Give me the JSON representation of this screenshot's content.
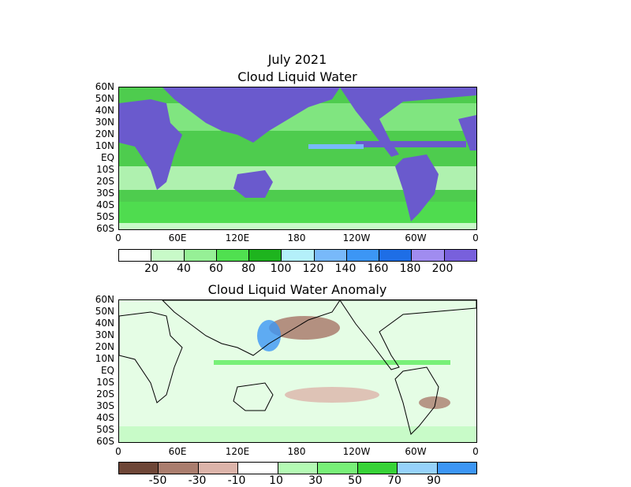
{
  "figure": {
    "title": "July 2021",
    "top_title": "Cloud Liquid Water",
    "bottom_title": "Cloud Liquid Water Anomaly"
  },
  "axes": {
    "y_ticks": [
      "60N",
      "50N",
      "40N",
      "30N",
      "20N",
      "10N",
      "EQ",
      "10S",
      "20S",
      "30S",
      "40S",
      "50S",
      "60S"
    ],
    "x_ticks": [
      "0",
      "60E",
      "120E",
      "180",
      "120W",
      "60W",
      "0"
    ]
  },
  "colorbar_top": {
    "labels": [
      "20",
      "40",
      "60",
      "80",
      "100",
      "120",
      "140",
      "160",
      "180",
      "200"
    ],
    "colors": [
      "#ffffff",
      "#c8fac8",
      "#96f096",
      "#50e050",
      "#1eb41e",
      "#b4f0fa",
      "#78b9fa",
      "#3c96f5",
      "#1e6ee6",
      "#a08cf0",
      "#7860dc"
    ]
  },
  "colorbar_bottom": {
    "labels": [
      "-50",
      "-30",
      "-10",
      "10",
      "30",
      "50",
      "70",
      "90"
    ],
    "colors": [
      "#6e4637",
      "#aa7d6e",
      "#dcb4aa",
      "#ffffff",
      "#b4fab4",
      "#78f078",
      "#37d237",
      "#96d2fa",
      "#3c96f5"
    ]
  },
  "maps": {
    "ocean_top": "#4ecc4e",
    "land": "#6a5acd",
    "ocean_bottom": "#ffffff",
    "itcz": "#6a5acd"
  }
}
